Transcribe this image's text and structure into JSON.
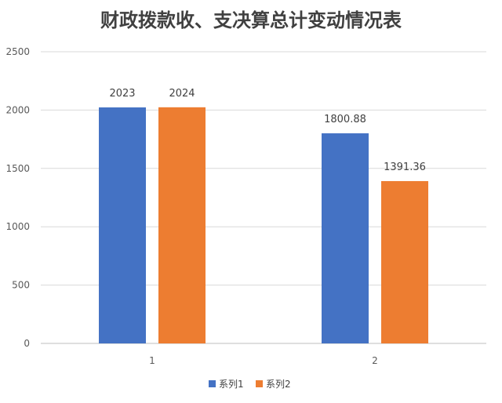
{
  "chart_data": {
    "type": "bar",
    "title": "财政拨款收、支决算总计变动情况表",
    "categories": [
      "1",
      "2"
    ],
    "series": [
      {
        "name": "系列1",
        "values": [
          2023,
          1800.88
        ],
        "labels": [
          "2023",
          "1800.88"
        ],
        "color": "#4472C4"
      },
      {
        "name": "系列2",
        "values": [
          2024,
          1391.36
        ],
        "labels": [
          "2024",
          "1391.36"
        ],
        "color": "#ED7D31"
      }
    ],
    "ylim": [
      0,
      2500
    ],
    "yticks": [
      "0",
      "500",
      "1000",
      "1500",
      "2000",
      "2500"
    ],
    "grid": true,
    "legend_position": "bottom"
  }
}
